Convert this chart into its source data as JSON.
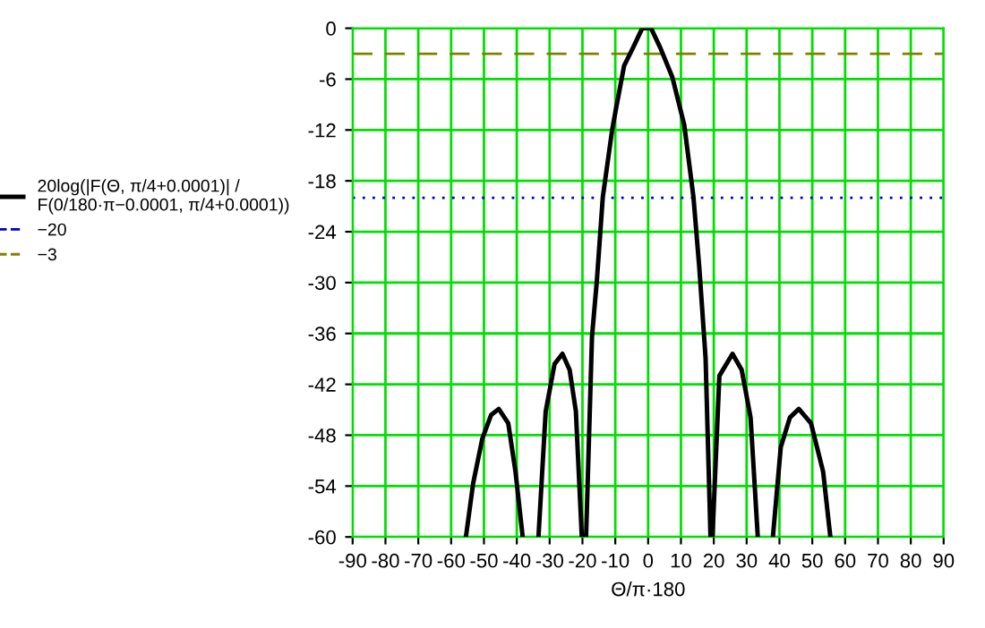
{
  "chart_data": {
    "type": "line",
    "xlabel": "Θ/π·180",
    "x": [
      -55.5,
      -53.3,
      -50.5,
      -47.8,
      -45.5,
      -42.6,
      -40.4,
      -38.2,
      -36,
      -33.4,
      -31.2,
      -28.5,
      -26.1,
      -23.9,
      -22.0,
      -20.2,
      -19.5,
      -18.9,
      -17.1,
      -15.6,
      -13.8,
      -11.0,
      -9.7,
      -7.3,
      -4.6,
      -1.8,
      0.9,
      3.7,
      7.4,
      11.0,
      13.8,
      15.6,
      17.5,
      19.0,
      19.3,
      19.6,
      21.7,
      25.7,
      28.5,
      31.2,
      33.4,
      36,
      38.0,
      40.4,
      43.2,
      45.9,
      49.6,
      53.3,
      55.5
    ],
    "series": [
      {
        "name": "20log(|F(Θ, π/4+0.0001)| /\nF(0/180·π−0.0001, π/4+0.0001))",
        "color": "#000000",
        "values": [
          -60,
          -53.7,
          -48.4,
          -45.6,
          -44.9,
          -46.6,
          -52.3,
          -60,
          null,
          -60,
          -45.2,
          -39.6,
          -38.4,
          -40.3,
          -45.2,
          -60,
          null,
          -60,
          -36.4,
          -29.7,
          -19.9,
          -12.1,
          -9.3,
          -4.4,
          -2.3,
          0,
          0,
          -2.3,
          -5.8,
          -11.4,
          -19.9,
          -28.3,
          -38.9,
          -60,
          null,
          -60,
          -41,
          -38.4,
          -40.3,
          -45.9,
          -60,
          null,
          -60,
          -49.4,
          -45.9,
          -44.9,
          -46.6,
          -52.3,
          -60
        ]
      }
    ],
    "ref_lines": [
      {
        "axis": "y",
        "value": -20,
        "label": "−20",
        "color": "#0000c0",
        "line_style": "dotted"
      },
      {
        "axis": "y",
        "value": -3,
        "label": "−3",
        "color": "#808000",
        "line_style": "dashed"
      }
    ],
    "xlim": [
      -90,
      90
    ],
    "xticks": [
      -90,
      -80,
      -70,
      -60,
      -50,
      -40,
      -30,
      -20,
      -10,
      0,
      10,
      20,
      30,
      40,
      50,
      60,
      70,
      80,
      90
    ],
    "ylim": [
      -60,
      0
    ],
    "yticks": [
      0,
      -6,
      -12,
      -18,
      -24,
      -30,
      -36,
      -42,
      -48,
      -54,
      -60
    ],
    "grid": true,
    "legend": "left",
    "line_style": "solid",
    "marker": "none"
  }
}
